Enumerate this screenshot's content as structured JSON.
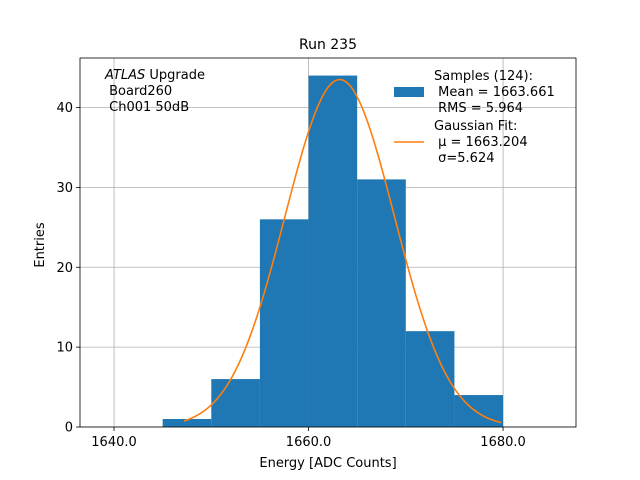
{
  "chart_data": {
    "type": "bar",
    "title": "Run 235",
    "xlabel": "Energy [ADC Counts]",
    "ylabel": "Entries",
    "xlim": [
      1636.5,
      1687.5
    ],
    "ylim": [
      0,
      46.2
    ],
    "grid": true,
    "x_ticks": [
      1640,
      1660,
      1680
    ],
    "x_tick_labels": [
      "1640.0",
      "1660.0",
      "1680.0"
    ],
    "y_ticks": [
      0,
      10,
      20,
      30,
      40
    ],
    "y_tick_labels": [
      "0",
      "10",
      "20",
      "30",
      "40"
    ],
    "bin_width": 5,
    "bin_edges": [
      1645,
      1650,
      1655,
      1660,
      1665,
      1670,
      1675,
      1680
    ],
    "bin_counts": [
      1,
      6,
      26,
      44,
      31,
      12,
      4
    ],
    "histogram_color": "#1f77b4",
    "fit": {
      "type": "gaussian",
      "mu": 1663.204,
      "sigma": 5.624,
      "amplitude": 43.5,
      "x_range": [
        1647.2,
        1679.8
      ],
      "color": "#ff7f0e"
    },
    "annotation_lines": [
      {
        "italic": "ATLAS",
        "rest": " Upgrade"
      },
      {
        "italic": "",
        "rest": " Board260"
      },
      {
        "italic": "",
        "rest": " Ch001 50dB"
      }
    ],
    "legend": {
      "placement": "top-right",
      "entries": [
        {
          "kind": "patch",
          "color": "#1f77b4",
          "lines": [
            "Samples (124):",
            " Mean = 1663.661",
            " RMS = 5.964"
          ]
        },
        {
          "kind": "line",
          "color": "#ff7f0e",
          "lines": [
            "Gaussian Fit:",
            " μ = 1663.204",
            " σ=5.624"
          ]
        }
      ]
    }
  }
}
